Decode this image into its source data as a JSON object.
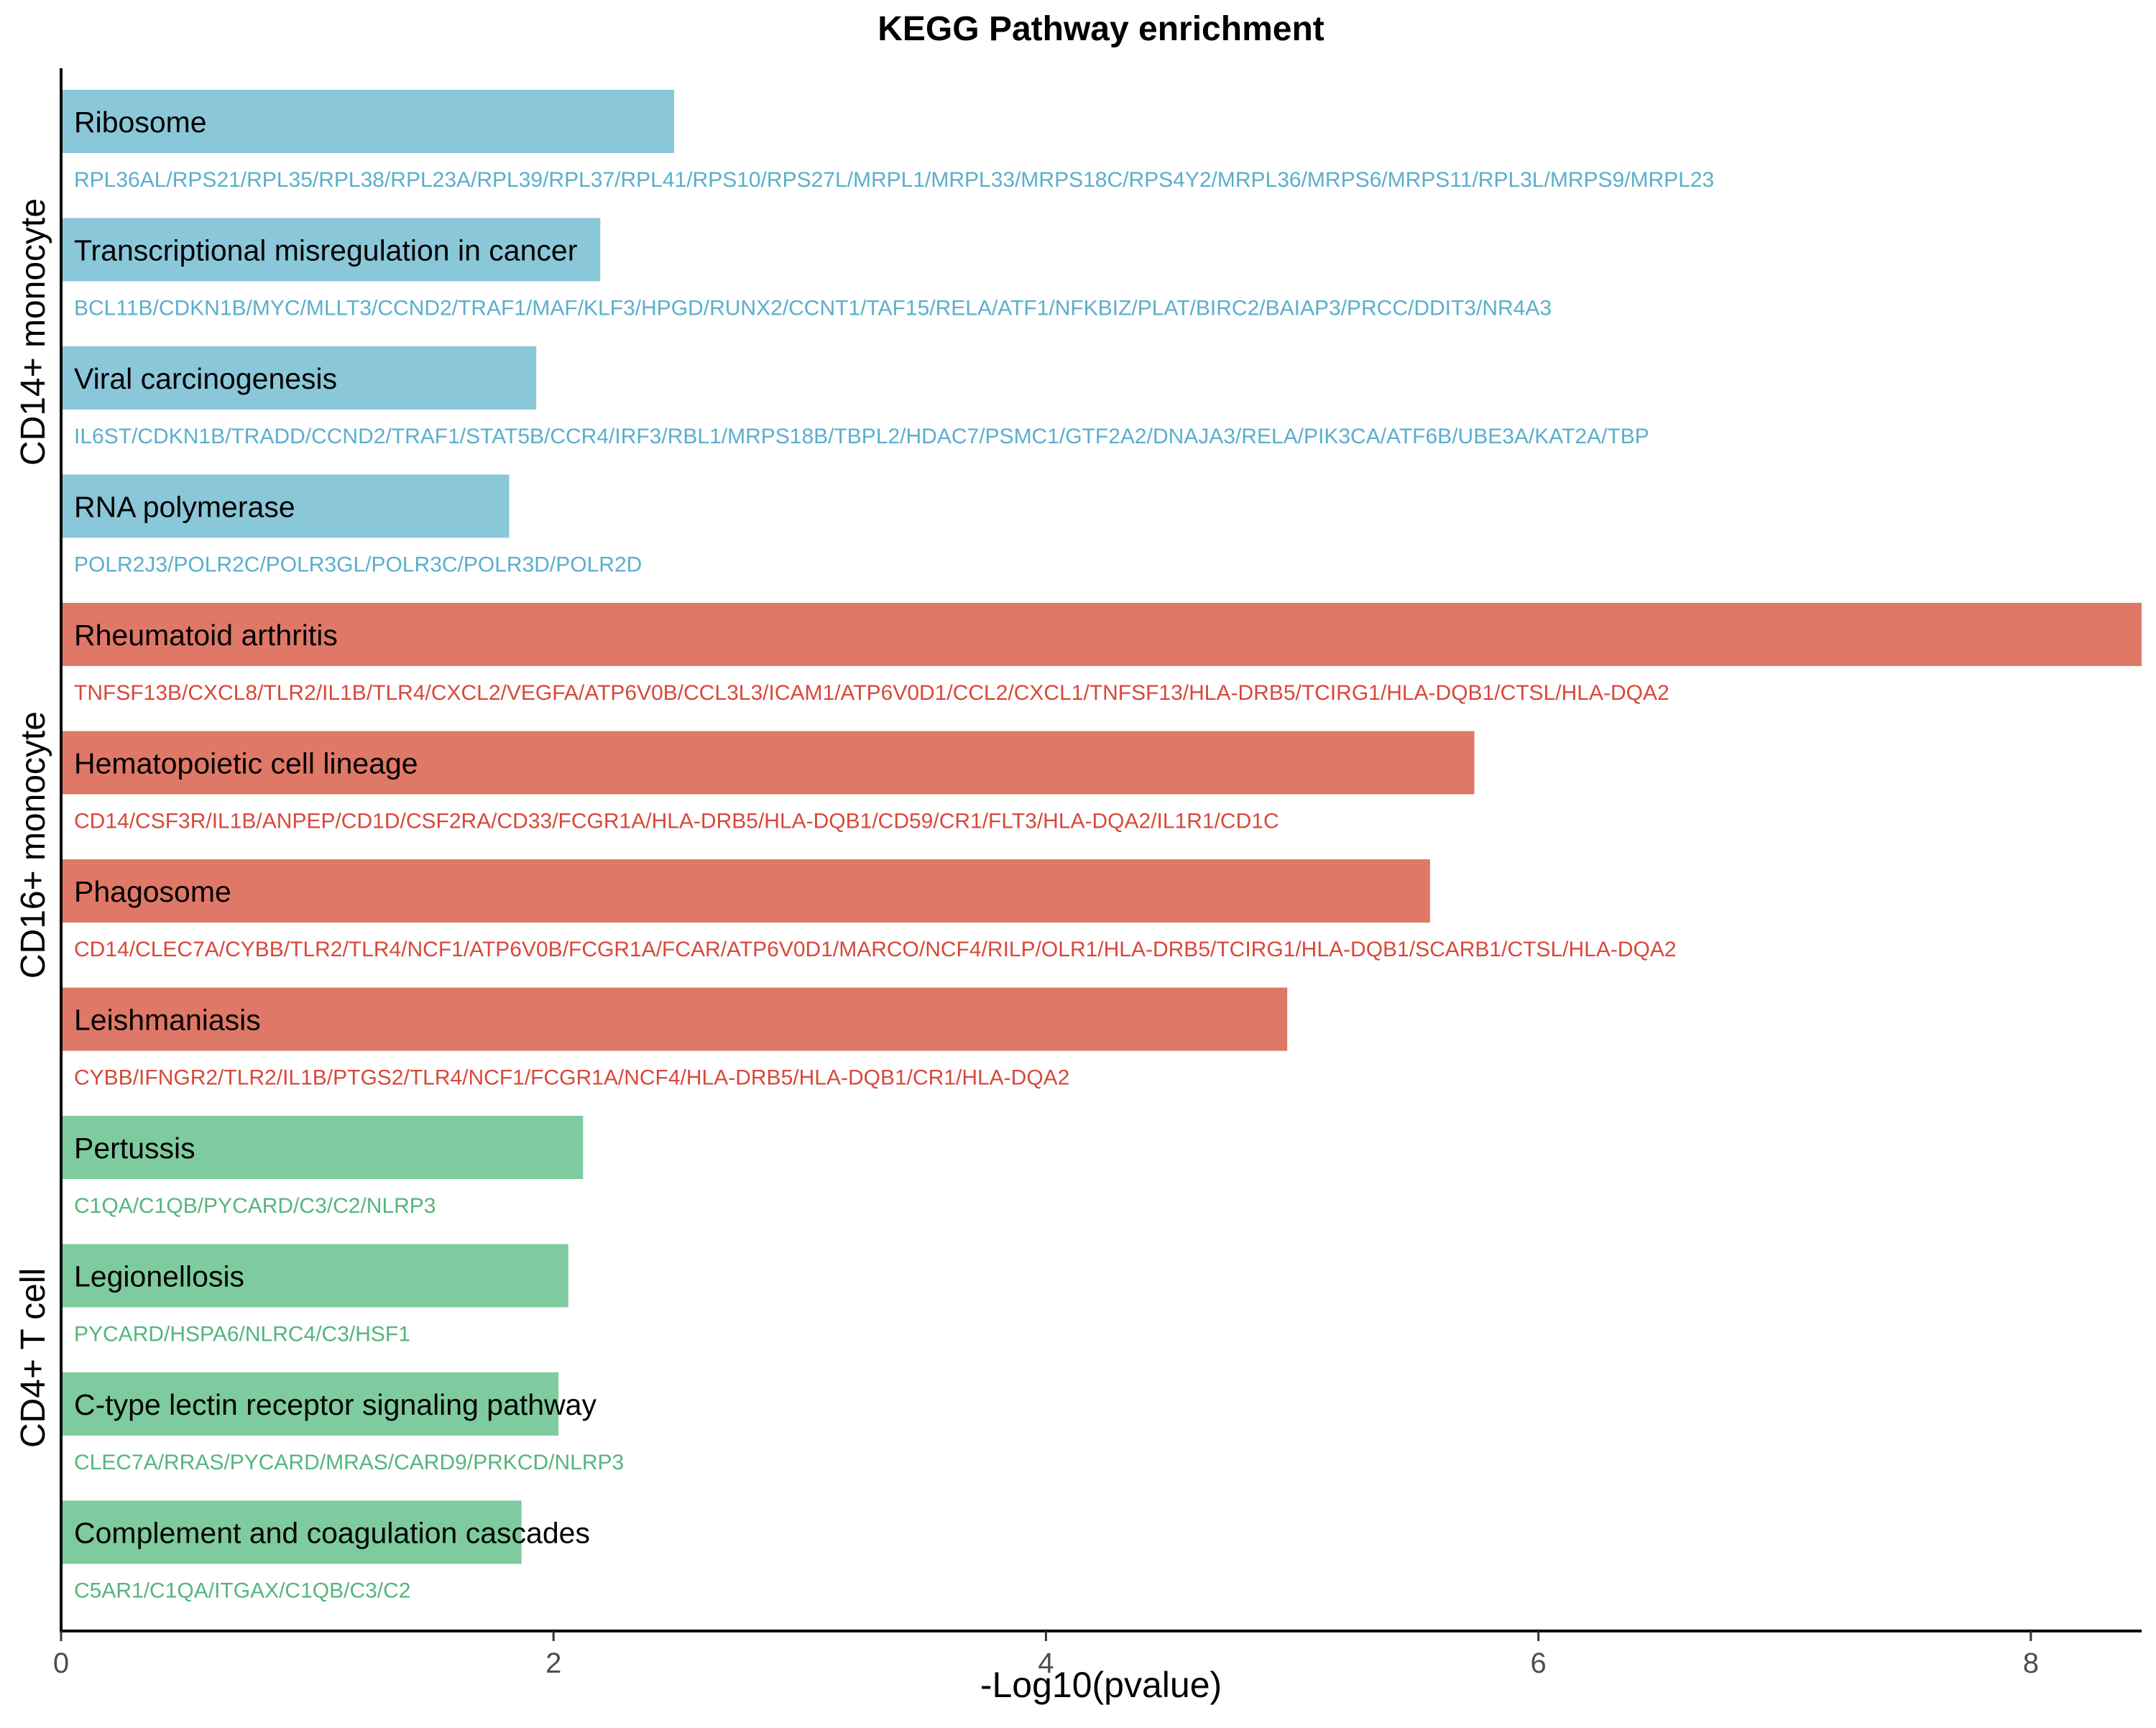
{
  "chart_data": {
    "type": "bar",
    "orientation": "horizontal",
    "title": "KEGG Pathway enrichment",
    "xlabel": "-Log10(pvalue)",
    "xlim": [
      0,
      8.45
    ],
    "xticks": [
      "0",
      "2",
      "4",
      "6",
      "8"
    ],
    "groups": [
      {
        "name": "CD14+ monocyte",
        "color": "#8ac7d9",
        "gene_color": "#5aafcb",
        "bars": [
          {
            "pathway": "Ribosome",
            "value": 2.49,
            "genes": "RPL36AL/RPS21/RPL35/RPL38/RPL23A/RPL39/RPL37/RPL41/RPS10/RPS27L/MRPL1/MRPL33/MRPS18C/RPS4Y2/MRPL36/MRPS6/MRPS11/RPL3L/MRPS9/MRPL23"
          },
          {
            "pathway": "Transcriptional misregulation in cancer",
            "value": 2.19,
            "genes": "BCL11B/CDKN1B/MYC/MLLT3/CCND2/TRAF1/MAF/KLF3/HPGD/RUNX2/CCNT1/TAF15/RELA/ATF1/NFKBIZ/PLAT/BIRC2/BAIAP3/PRCC/DDIT3/NR4A3"
          },
          {
            "pathway": "Viral carcinogenesis",
            "value": 1.93,
            "genes": "IL6ST/CDKN1B/TRADD/CCND2/TRAF1/STAT5B/CCR4/IRF3/RBL1/MRPS18B/TBPL2/HDAC7/PSMC1/GTF2A2/DNAJA3/RELA/PIK3CA/ATF6B/UBE3A/KAT2A/TBP"
          },
          {
            "pathway": "RNA polymerase",
            "value": 1.82,
            "genes": "POLR2J3/POLR2C/POLR3GL/POLR3C/POLR3D/POLR2D"
          }
        ]
      },
      {
        "name": "CD16+ monocyte",
        "color": "#df7867",
        "gene_color": "#d8483a",
        "bars": [
          {
            "pathway": "Rheumatoid arthritis",
            "value": 8.45,
            "genes": "TNFSF13B/CXCL8/TLR2/IL1B/TLR4/CXCL2/VEGFA/ATP6V0B/CCL3L3/ICAM1/ATP6V0D1/CCL2/CXCL1/TNFSF13/HLA-DRB5/TCIRG1/HLA-DQB1/CTSL/HLA-DQA2"
          },
          {
            "pathway": "Hematopoietic cell lineage",
            "value": 5.74,
            "genes": "CD14/CSF3R/IL1B/ANPEP/CD1D/CSF2RA/CD33/FCGR1A/HLA-DRB5/HLA-DQB1/CD59/CR1/FLT3/HLA-DQA2/IL1R1/CD1C"
          },
          {
            "pathway": "Phagosome",
            "value": 5.56,
            "genes": "CD14/CLEC7A/CYBB/TLR2/TLR4/NCF1/ATP6V0B/FCGR1A/FCAR/ATP6V0D1/MARCO/NCF4/RILP/OLR1/HLA-DRB5/TCIRG1/HLA-DQB1/SCARB1/CTSL/HLA-DQA2"
          },
          {
            "pathway": "Leishmaniasis",
            "value": 4.98,
            "genes": "CYBB/IFNGR2/TLR2/IL1B/PTGS2/TLR4/NCF1/FCGR1A/NCF4/HLA-DRB5/HLA-DQB1/CR1/HLA-DQA2"
          }
        ]
      },
      {
        "name": "CD4+ T cell",
        "color": "#7ecb9f",
        "gene_color": "#55b57c",
        "bars": [
          {
            "pathway": "Pertussis",
            "value": 2.12,
            "genes": "C1QA/C1QB/PYCARD/C3/C2/NLRP3"
          },
          {
            "pathway": "Legionellosis",
            "value": 2.06,
            "genes": "PYCARD/HSPA6/NLRC4/C3/HSF1"
          },
          {
            "pathway": "C-type lectin receptor signaling pathway",
            "value": 2.02,
            "genes": "CLEC7A/RRAS/PYCARD/MRAS/CARD9/PRKCD/NLRP3"
          },
          {
            "pathway": "Complement and coagulation cascades",
            "value": 1.87,
            "genes": "C5AR1/C1QA/ITGAX/C1QB/C3/C2"
          }
        ]
      }
    ]
  }
}
